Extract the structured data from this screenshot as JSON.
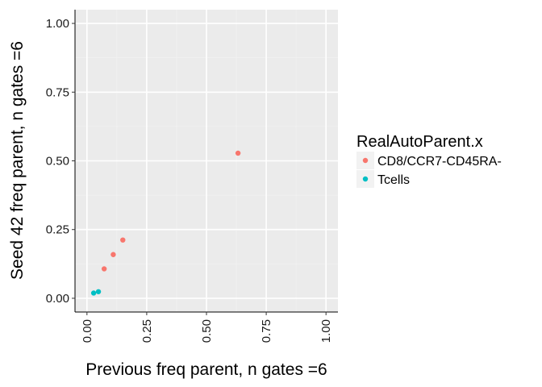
{
  "chart_data": {
    "type": "scatter",
    "title": "",
    "xlabel": "Previous freq parent, n gates =6",
    "ylabel": "Seed 42 freq parent, n gates =6",
    "xlim": [
      -0.05,
      1.05
    ],
    "ylim": [
      -0.05,
      1.05
    ],
    "x_ticks": [
      0,
      0.25,
      0.5,
      0.75,
      1
    ],
    "x_tick_labels": [
      "0.00",
      "0.25",
      "0.50",
      "0.75",
      "1.00"
    ],
    "y_ticks": [
      0,
      0.25,
      0.5,
      0.75,
      1
    ],
    "y_tick_labels": [
      "0.00",
      "0.25",
      "0.50",
      "0.75",
      "1.00"
    ],
    "grid": true,
    "legend": {
      "title": "RealAutoParent.x",
      "position": "right"
    },
    "series": [
      {
        "name": "CD8/CCR7-CD45RA-",
        "color": "#F8766D",
        "x": [
          0.632,
          0.15,
          0.11,
          0.072
        ],
        "y": [
          0.528,
          0.212,
          0.159,
          0.107
        ]
      },
      {
        "name": "Tcells",
        "color": "#00BFC4",
        "x": [
          0.048,
          0.028
        ],
        "y": [
          0.024,
          0.019
        ]
      }
    ]
  }
}
